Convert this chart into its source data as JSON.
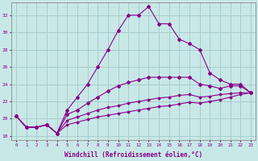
{
  "title": "",
  "xlabel": "Windchill (Refroidissement éolien,°C)",
  "ylabel": "",
  "bg_color": "#c8e8e8",
  "grid_color": "#aacccc",
  "line_color": "#880088",
  "xlim": [
    -0.5,
    23.5
  ],
  "ylim": [
    17.5,
    33.5
  ],
  "xticks": [
    0,
    1,
    2,
    3,
    4,
    5,
    6,
    7,
    8,
    9,
    10,
    11,
    12,
    13,
    14,
    15,
    16,
    17,
    18,
    19,
    20,
    21,
    22,
    23
  ],
  "yticks": [
    18,
    20,
    22,
    24,
    26,
    28,
    30,
    32
  ],
  "series1_x": [
    0,
    1,
    2,
    3,
    4,
    5,
    6,
    7,
    8,
    9,
    10,
    11,
    12,
    13,
    14,
    15,
    16,
    17,
    18,
    19,
    20,
    21,
    22,
    23
  ],
  "series1_y": [
    20.3,
    19.0,
    19.0,
    19.3,
    18.3,
    21.0,
    22.5,
    24.0,
    26.0,
    28.0,
    30.2,
    32.0,
    32.0,
    33.0,
    31.0,
    31.0,
    29.2,
    28.7,
    28.0,
    25.3,
    24.5,
    24.0,
    24.0,
    23.0
  ],
  "series2_x": [
    0,
    1,
    2,
    3,
    4,
    5,
    6,
    7,
    8,
    9,
    10,
    11,
    12,
    13,
    14,
    15,
    16,
    17,
    18,
    19,
    20,
    21,
    22,
    23
  ],
  "series2_y": [
    20.3,
    19.0,
    19.0,
    19.3,
    18.3,
    20.5,
    21.0,
    21.8,
    22.5,
    23.2,
    23.8,
    24.2,
    24.5,
    24.8,
    24.8,
    24.8,
    24.8,
    24.8,
    24.0,
    23.8,
    23.5,
    23.8,
    23.8,
    23.0
  ],
  "series3_x": [
    0,
    1,
    2,
    3,
    4,
    5,
    6,
    7,
    8,
    9,
    10,
    11,
    12,
    13,
    14,
    15,
    16,
    17,
    18,
    19,
    20,
    21,
    22,
    23
  ],
  "series3_y": [
    20.3,
    19.0,
    19.0,
    19.3,
    18.3,
    19.8,
    20.2,
    20.6,
    21.0,
    21.3,
    21.5,
    21.8,
    22.0,
    22.2,
    22.4,
    22.5,
    22.7,
    22.8,
    22.5,
    22.6,
    22.8,
    22.9,
    23.0,
    23.0
  ],
  "series4_x": [
    0,
    1,
    2,
    3,
    4,
    5,
    6,
    7,
    8,
    9,
    10,
    11,
    12,
    13,
    14,
    15,
    16,
    17,
    18,
    19,
    20,
    21,
    22,
    23
  ],
  "series4_y": [
    20.3,
    19.0,
    19.0,
    19.3,
    18.3,
    19.3,
    19.6,
    19.9,
    20.2,
    20.4,
    20.6,
    20.8,
    21.0,
    21.2,
    21.4,
    21.5,
    21.7,
    21.9,
    21.8,
    22.0,
    22.2,
    22.5,
    22.8,
    23.0
  ]
}
